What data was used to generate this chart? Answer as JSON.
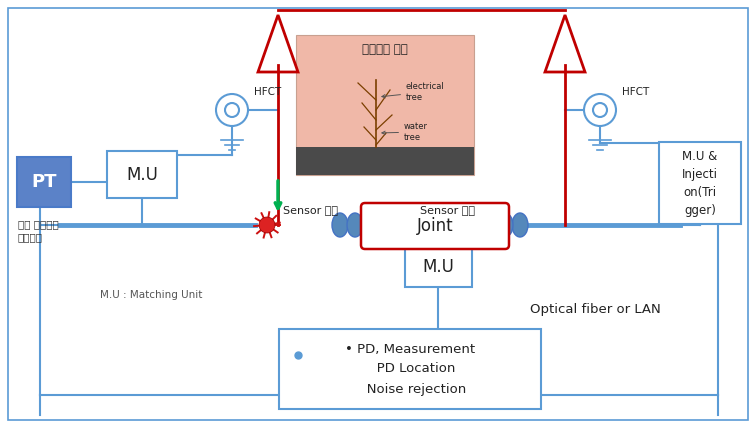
{
  "bg_color": "#ffffff",
  "border_color": "#5b9bd5",
  "red_color": "#c00000",
  "green_color": "#00b050",
  "blue_fill": "#4472c4",
  "pt_label": "PT",
  "mu_label": "M.U",
  "mu_label2": "M.U",
  "mu_inj_label": "M.U &\nInjecti\non(Tri\ngger)",
  "joint_label": "Joint",
  "hfct_label": "HFCT",
  "hfct_label2": "HFCT",
  "sensor_left": "Sensor 개발",
  "sensor_right": "Sensor 개발",
  "mu_matching": "M.U : Matching Unit",
  "optical_fiber": "Optical fiber or LAN",
  "pd_text": "• PD, Measurement\n   PD Location\n   Noise rejection",
  "cable_fault_title": "케이블의 고장",
  "elec_tree": "electrical\ntree",
  "water_tree": "water\ntree",
  "pt_subtext": "또는 전계센서\n위상정보"
}
